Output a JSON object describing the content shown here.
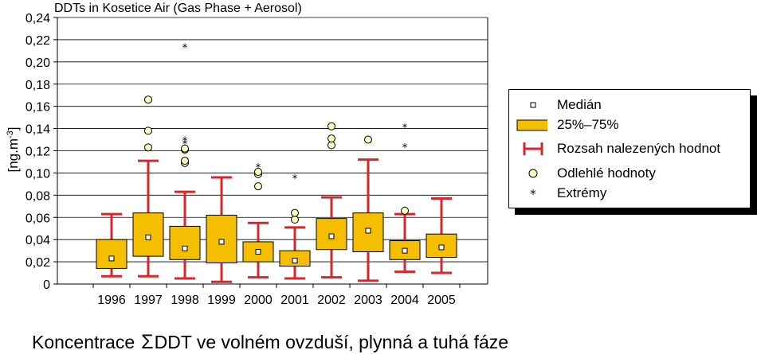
{
  "chart_data": {
    "type": "boxplot",
    "title": "DDTs in Kosetice Air (Gas Phase + Aerosol)",
    "ylabel_main": "[ng.m",
    "ylabel_sup": "-3",
    "ylabel_end": "]",
    "ylim": [
      0,
      0.24
    ],
    "y_ticks": [
      "0",
      "0,02",
      "0,04",
      "0,06",
      "0,08",
      "0,10",
      "0,12",
      "0,14",
      "0,16",
      "0,18",
      "0,20",
      "0,22",
      "0,24"
    ],
    "y_tick_values": [
      0,
      0.02,
      0.04,
      0.06,
      0.08,
      0.1,
      0.12,
      0.14,
      0.16,
      0.18,
      0.2,
      0.22,
      0.24
    ],
    "grid": true,
    "legend_position": "right",
    "colors": {
      "box": "#f5bf00",
      "whisker": "#d9262b",
      "outlier_fill": "#ffffc0",
      "median_fill": "#ffffff"
    },
    "categories": [
      "1996",
      "1997",
      "1998",
      "1999",
      "2000",
      "2001",
      "2002",
      "2003",
      "2004",
      "2005"
    ],
    "series": [
      {
        "year": "1996",
        "min": 0.007,
        "q1": 0.014,
        "median": 0.023,
        "q3": 0.04,
        "max": 0.063,
        "outliers": [],
        "extremes": []
      },
      {
        "year": "1997",
        "min": 0.007,
        "q1": 0.025,
        "median": 0.042,
        "q3": 0.064,
        "max": 0.111,
        "outliers": [
          0.123,
          0.138,
          0.166
        ],
        "extremes": []
      },
      {
        "year": "1998",
        "min": 0.005,
        "q1": 0.022,
        "median": 0.032,
        "q3": 0.052,
        "max": 0.083,
        "outliers": [
          0.109,
          0.111,
          0.121,
          0.122
        ],
        "extremes": [
          0.127,
          0.13,
          0.214
        ]
      },
      {
        "year": "1999",
        "min": 0.002,
        "q1": 0.019,
        "median": 0.038,
        "q3": 0.062,
        "max": 0.096,
        "outliers": [],
        "extremes": []
      },
      {
        "year": "2000",
        "min": 0.006,
        "q1": 0.02,
        "median": 0.029,
        "q3": 0.038,
        "max": 0.055,
        "outliers": [
          0.088,
          0.099,
          0.101
        ],
        "extremes": [
          0.106
        ]
      },
      {
        "year": "2001",
        "min": 0.005,
        "q1": 0.016,
        "median": 0.021,
        "q3": 0.03,
        "max": 0.051,
        "outliers": [
          0.058,
          0.064
        ],
        "extremes": [
          0.096
        ]
      },
      {
        "year": "2002",
        "min": 0.006,
        "q1": 0.031,
        "median": 0.043,
        "q3": 0.059,
        "max": 0.078,
        "outliers": [
          0.125,
          0.131,
          0.142
        ],
        "extremes": []
      },
      {
        "year": "2003",
        "min": 0.003,
        "q1": 0.029,
        "median": 0.048,
        "q3": 0.064,
        "max": 0.112,
        "outliers": [
          0.13
        ],
        "extremes": []
      },
      {
        "year": "2004",
        "min": 0.011,
        "q1": 0.022,
        "median": 0.03,
        "q3": 0.039,
        "max": 0.063,
        "outliers": [
          0.066
        ],
        "extremes": [
          0.124,
          0.142
        ]
      },
      {
        "year": "2005",
        "min": 0.01,
        "q1": 0.024,
        "median": 0.033,
        "q3": 0.045,
        "max": 0.077,
        "outliers": [],
        "extremes": []
      }
    ]
  },
  "legend": {
    "items": [
      {
        "key": "median",
        "label": "Medián"
      },
      {
        "key": "box",
        "label": "25%–75%"
      },
      {
        "key": "range",
        "label": "Rozsah nalezených hodnot"
      },
      {
        "key": "outlier",
        "label": "Odlehlé hodnoty"
      },
      {
        "key": "extreme",
        "label": "Extrémy"
      }
    ]
  },
  "caption": {
    "prefix": "Koncentrace",
    "symbol": "Σ",
    "text": "DDT ve volném ovzduší, plynná a tuhá fáze"
  }
}
